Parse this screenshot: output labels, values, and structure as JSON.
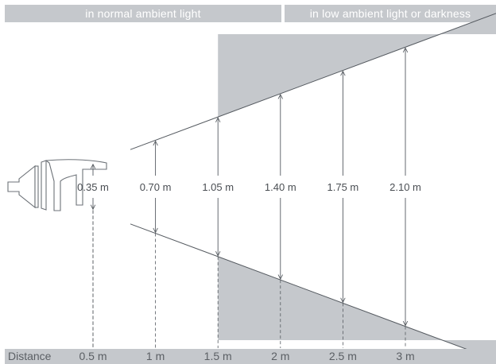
{
  "header": {
    "normal_light": "in normal ambient light",
    "low_light": "in low ambient light or darkness"
  },
  "footer": {
    "label": "Distance"
  },
  "colors": {
    "band": "#c5c8cc",
    "shade": "#c5c8cc",
    "line": "#555a60",
    "text": "#4a4e53"
  },
  "light_icon": "headlamp-icon",
  "measurements": [
    {
      "distance": 0.5,
      "distance_label": "0.5 m",
      "width": 0.35,
      "width_label": "0.35 m"
    },
    {
      "distance": 1.0,
      "distance_label": "1 m",
      "width": 0.7,
      "width_label": "0.70 m"
    },
    {
      "distance": 1.5,
      "distance_label": "1.5 m",
      "width": 1.05,
      "width_label": "1.05 m"
    },
    {
      "distance": 2.0,
      "distance_label": "2 m",
      "width": 1.4,
      "width_label": "1.40 m"
    },
    {
      "distance": 2.5,
      "distance_label": "2.5 m",
      "width": 1.75,
      "width_label": "1.75 m"
    },
    {
      "distance": 3.0,
      "distance_label": "3 m",
      "width": 2.1,
      "width_label": "2.10 m"
    }
  ],
  "low_light_starts_at_distance": 1.5
}
